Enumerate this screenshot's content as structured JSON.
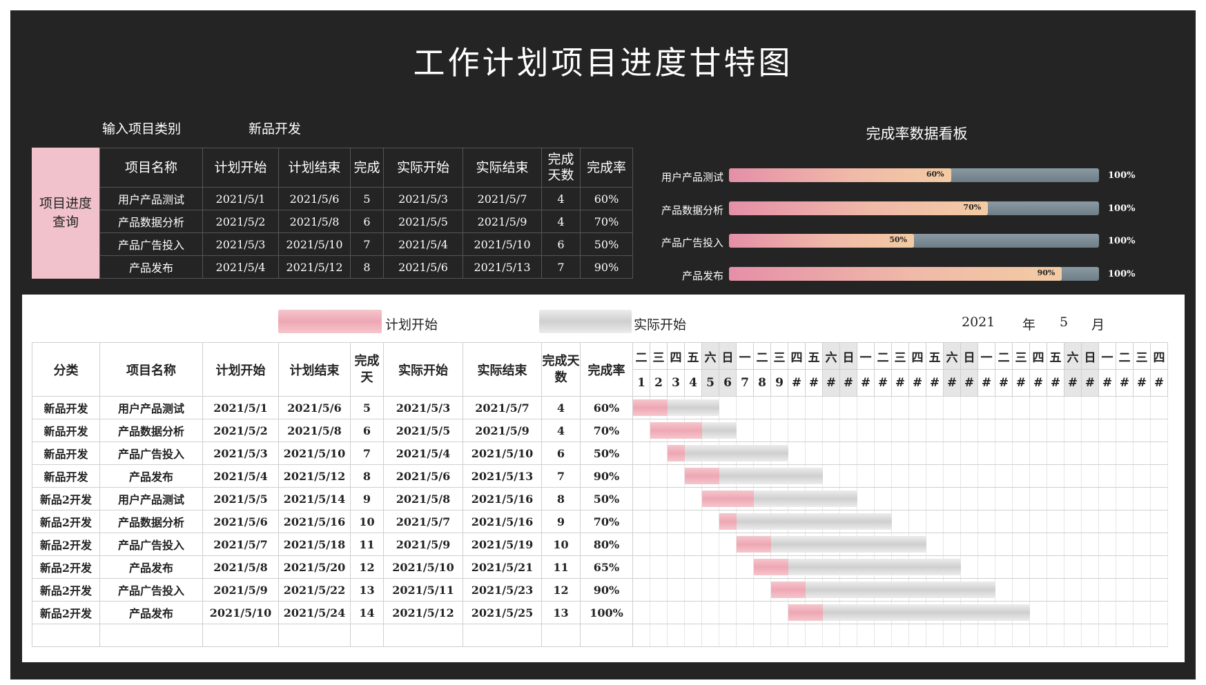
{
  "title": "工作计划项目进度甘特图",
  "filter": {
    "label": "输入项目类别",
    "value": "新品开发"
  },
  "query_box": {
    "label_line1": "项目进度",
    "label_line2": "查询"
  },
  "query_table": {
    "headers": [
      "项目名称",
      "计划开始",
      "计划结束",
      "完成",
      "实际开始",
      "实际结束",
      "完成天数",
      "完成率"
    ],
    "rows": [
      [
        "用户产品测试",
        "2021/5/1",
        "2021/5/6",
        "5",
        "2021/5/3",
        "2021/5/7",
        "4",
        "60%"
      ],
      [
        "产品数据分析",
        "2021/5/2",
        "2021/5/8",
        "6",
        "2021/5/5",
        "2021/5/9",
        "4",
        "70%"
      ],
      [
        "产品广告投入",
        "2021/5/3",
        "2021/5/10",
        "7",
        "2021/5/4",
        "2021/5/10",
        "6",
        "50%"
      ],
      [
        "产品发布",
        "2021/5/4",
        "2021/5/12",
        "8",
        "2021/5/6",
        "2021/5/13",
        "7",
        "90%"
      ]
    ]
  },
  "dashboard": {
    "title": "完成率数据看板",
    "bars": [
      {
        "label": "用户产品测试",
        "value": 0.6,
        "value_text": "60%",
        "max_text": "100%"
      },
      {
        "label": "产品数据分析",
        "value": 0.7,
        "value_text": "70%",
        "max_text": "100%"
      },
      {
        "label": "产品广告投入",
        "value": 0.5,
        "value_text": "50%",
        "max_text": "100%"
      },
      {
        "label": "产品发布",
        "value": 0.9,
        "value_text": "90%",
        "max_text": "100%"
      }
    ]
  },
  "legend": {
    "plan": "计划开始",
    "actual": "实际开始",
    "year": "2021",
    "year_unit": "年",
    "month": "5",
    "month_unit": "月"
  },
  "gantt_table": {
    "headers": [
      "分类",
      "项目名称",
      "计划开始",
      "计划结束",
      "完成天",
      "实际开始",
      "实际结束",
      "完成天数",
      "完成率"
    ],
    "weekdays": [
      "二",
      "三",
      "四",
      "五",
      "六",
      "日",
      "一",
      "二",
      "三",
      "四",
      "五",
      "六",
      "日",
      "一",
      "二",
      "三",
      "四",
      "五",
      "六",
      "日",
      "一",
      "二",
      "三",
      "四",
      "五",
      "六",
      "日",
      "一",
      "二",
      "三",
      "四"
    ],
    "day_numbers": [
      "1",
      "2",
      "3",
      "4",
      "5",
      "6",
      "7",
      "8",
      "9",
      "#",
      "#",
      "#",
      "#",
      "#",
      "#",
      "#",
      "#",
      "#",
      "#",
      "#",
      "#",
      "#",
      "#",
      "#",
      "#",
      "#",
      "#",
      "#",
      "#",
      "#",
      "#"
    ],
    "rows": [
      [
        "新品开发",
        "用户产品测试",
        "2021/5/1",
        "2021/5/6",
        "5",
        "2021/5/3",
        "2021/5/7",
        "4",
        "60%"
      ],
      [
        "新品开发",
        "产品数据分析",
        "2021/5/2",
        "2021/5/8",
        "6",
        "2021/5/5",
        "2021/5/9",
        "4",
        "70%"
      ],
      [
        "新品开发",
        "产品广告投入",
        "2021/5/3",
        "2021/5/10",
        "7",
        "2021/5/4",
        "2021/5/10",
        "6",
        "50%"
      ],
      [
        "新品开发",
        "产品发布",
        "2021/5/4",
        "2021/5/12",
        "8",
        "2021/5/6",
        "2021/5/13",
        "7",
        "90%"
      ],
      [
        "新品2开发",
        "用户产品测试",
        "2021/5/5",
        "2021/5/14",
        "9",
        "2021/5/8",
        "2021/5/16",
        "8",
        "50%"
      ],
      [
        "新品2开发",
        "产品数据分析",
        "2021/5/6",
        "2021/5/16",
        "10",
        "2021/5/7",
        "2021/5/16",
        "9",
        "70%"
      ],
      [
        "新品2开发",
        "产品广告投入",
        "2021/5/7",
        "2021/5/18",
        "11",
        "2021/5/9",
        "2021/5/19",
        "10",
        "80%"
      ],
      [
        "新品2开发",
        "产品发布",
        "2021/5/8",
        "2021/5/20",
        "12",
        "2021/5/10",
        "2021/5/21",
        "11",
        "65%"
      ],
      [
        "新品2开发",
        "产品广告投入",
        "2021/5/9",
        "2021/5/22",
        "13",
        "2021/5/11",
        "2021/5/23",
        "12",
        "90%"
      ],
      [
        "新品2开发",
        "产品发布",
        "2021/5/10",
        "2021/5/24",
        "14",
        "2021/5/12",
        "2021/5/25",
        "13",
        "100%"
      ]
    ],
    "gantt_bars": [
      {
        "start_day": 1,
        "plan_days": 2,
        "actual_days": 5
      },
      {
        "start_day": 2,
        "plan_days": 3,
        "actual_days": 5
      },
      {
        "start_day": 3,
        "plan_days": 1,
        "actual_days": 7
      },
      {
        "start_day": 4,
        "plan_days": 2,
        "actual_days": 8
      },
      {
        "start_day": 5,
        "plan_days": 3,
        "actual_days": 9
      },
      {
        "start_day": 6,
        "plan_days": 1,
        "actual_days": 10
      },
      {
        "start_day": 7,
        "plan_days": 2,
        "actual_days": 11
      },
      {
        "start_day": 8,
        "plan_days": 2,
        "actual_days": 12
      },
      {
        "start_day": 9,
        "plan_days": 2,
        "actual_days": 13
      },
      {
        "start_day": 10,
        "plan_days": 2,
        "actual_days": 14
      }
    ]
  },
  "colors": {
    "panel": "#242424",
    "plan_bar": "#eea7b4",
    "actual_bar": "#cfcfcf",
    "query_box": "#f1c2cb"
  }
}
